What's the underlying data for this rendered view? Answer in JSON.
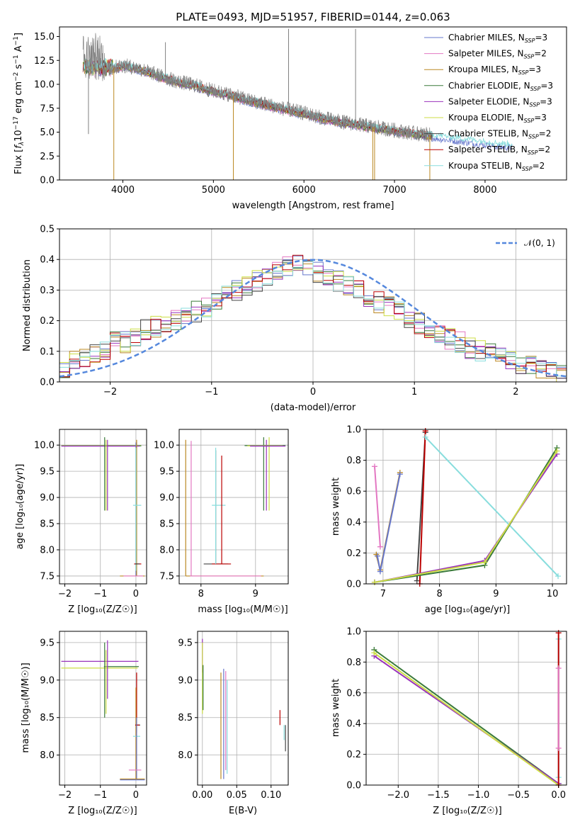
{
  "figure": {
    "colors": {
      "Chabrier MILES": "#6677cc",
      "Salpeter MILES": "#e377c2",
      "Kroupa MILES": "#bb8822",
      "Chabrier ELODIE": "#3a7a3a",
      "Salpeter ELODIE": "#9933bb",
      "Kroupa ELODIE": "#ccdd44",
      "Chabrier STELIB": "#444444",
      "Salpeter STELIB": "#bb0000",
      "Kroupa STELIB": "#88dddd",
      "data": "#808080",
      "normal": "#5588dd",
      "grid": "#b0b0b0"
    }
  },
  "chart_data": [
    {
      "id": "spectrum",
      "type": "line",
      "title": "PLATE=0493, MJD=51957, FIBERID=0144, z=0.063",
      "xlabel": "wavelength [Angstrom, rest frame]",
      "ylabel": "Flux [$f_\\lambda 10^{-17}$ erg cm$^{-2}$ s$^{-1}$ A$^{-1}$]",
      "ylabel_parts": {
        "a": "Flux [",
        "b": "f",
        "c": "λ",
        "d": "10",
        "e": "−17",
        "f": " erg cm",
        "g": "−2",
        "h": " s",
        "i": "−1",
        "j": " A",
        "k": "−1",
        "l": "]"
      },
      "xlim": [
        3300,
        8900
      ],
      "ylim": [
        0,
        16
      ],
      "xticks": [
        "4000",
        "5000",
        "6000",
        "7000",
        "8000"
      ],
      "xtick_values": [
        4000,
        5000,
        6000,
        7000,
        8000
      ],
      "yticks": [
        "0.0",
        "2.5",
        "5.0",
        "7.5",
        "10.0",
        "12.5",
        "15.0"
      ],
      "ytick_values": [
        0,
        2.5,
        5,
        7.5,
        10,
        12.5,
        15
      ],
      "grid": false,
      "legend_position": "upper-right",
      "legend": [
        {
          "name": "Chabrier MILES",
          "nssp": "3"
        },
        {
          "name": "Salpeter MILES",
          "nssp": "2"
        },
        {
          "name": "Kroupa MILES",
          "nssp": "3"
        },
        {
          "name": "Chabrier ELODIE",
          "nssp": "3"
        },
        {
          "name": "Salpeter ELODIE",
          "nssp": "3"
        },
        {
          "name": "Kroupa ELODIE",
          "nssp": "3"
        },
        {
          "name": "Chabrier STELIB",
          "nssp": "2"
        },
        {
          "name": "Salpeter STELIB",
          "nssp": "2"
        },
        {
          "name": "Kroupa STELIB",
          "nssp": "2"
        }
      ],
      "legend_label_parts": {
        "n": "N",
        "sub": "SSP"
      },
      "data_trend": {
        "x": [
          3600,
          3800,
          4000,
          4200,
          4400,
          4600,
          4800,
          5000,
          5200,
          5400,
          5600,
          5800,
          6000,
          6200,
          6400,
          6600,
          6800,
          7000,
          7200,
          7400
        ],
        "y": [
          11.8,
          11.5,
          12.0,
          11.6,
          10.9,
          10.3,
          9.9,
          9.3,
          8.9,
          8.3,
          7.9,
          7.4,
          7.0,
          6.5,
          6.1,
          5.8,
          5.5,
          5.2,
          4.9,
          4.7
        ]
      },
      "model_trend": {
        "x": [
          3600,
          3800,
          4000,
          4200,
          4400,
          4600,
          4800,
          5000,
          5200,
          5400,
          5600,
          5800,
          6000,
          6200,
          6400,
          6600,
          6800,
          7000,
          7200,
          7400,
          7800,
          8200
        ],
        "y": [
          11.6,
          11.4,
          11.9,
          11.5,
          10.8,
          10.2,
          9.8,
          9.2,
          8.8,
          8.2,
          7.8,
          7.3,
          6.9,
          6.4,
          6.0,
          5.7,
          5.4,
          5.1,
          4.8,
          4.6,
          4.1,
          3.6
        ]
      },
      "spikes": [
        {
          "x": 3620,
          "y": 4.8
        },
        {
          "x": 3900,
          "y": 0
        },
        {
          "x": 4470,
          "y": 14.4
        },
        {
          "x": 5220,
          "y": 0
        },
        {
          "x": 5830,
          "y": 15.8
        },
        {
          "x": 6570,
          "y": 15.8
        },
        {
          "x": 6760,
          "y": 0
        },
        {
          "x": 6780,
          "y": 0
        },
        {
          "x": 7390,
          "y": 0
        }
      ]
    },
    {
      "id": "residuals",
      "type": "histogram",
      "xlabel": "(data-model)/error",
      "ylabel": "Normed distribution",
      "xlim": [
        -2.5,
        2.5
      ],
      "ylim": [
        0,
        0.5
      ],
      "xticks": [
        "−2",
        "−1",
        "0",
        "1",
        "2"
      ],
      "xtick_values": [
        -2,
        -1,
        0,
        1,
        2
      ],
      "yticks": [
        "0.0",
        "0.1",
        "0.2",
        "0.3",
        "0.4",
        "0.5"
      ],
      "ytick_values": [
        0,
        0.1,
        0.2,
        0.3,
        0.4,
        0.5
      ],
      "grid": true,
      "legend_position": "upper-right",
      "legend_label": "𝒩(0, 1)",
      "bin_width": 0.1,
      "bins_start": -2.5,
      "base_histogram": [
        0.04,
        0.07,
        0.08,
        0.09,
        0.1,
        0.13,
        0.13,
        0.15,
        0.17,
        0.18,
        0.19,
        0.2,
        0.22,
        0.23,
        0.24,
        0.26,
        0.28,
        0.3,
        0.31,
        0.33,
        0.35,
        0.36,
        0.38,
        0.39,
        0.37,
        0.36,
        0.35,
        0.33,
        0.31,
        0.3,
        0.28,
        0.26,
        0.25,
        0.23,
        0.21,
        0.19,
        0.17,
        0.15,
        0.14,
        0.13,
        0.11,
        0.1,
        0.09,
        0.08,
        0.07,
        0.06,
        0.05,
        0.04,
        0.03,
        0.02
      ],
      "normal_curve": {
        "mu": 0,
        "sigma": 1
      }
    },
    {
      "id": "age-vs-Z",
      "type": "errorbar",
      "xlabel": "Z [log₁₀(Z/Z☉)]",
      "ylabel": "age  [log₁₀(age/yr)]",
      "xlim": [
        -2.15,
        0.3
      ],
      "ylim": [
        7.35,
        10.3
      ],
      "xticks": [
        "−2",
        "−1",
        "0"
      ],
      "xtick_values": [
        -2,
        -1,
        0
      ],
      "yticks": [
        "7.5",
        "8.0",
        "8.5",
        "9.0",
        "9.5",
        "10.0"
      ],
      "ytick_values": [
        7.5,
        8.0,
        8.5,
        9.0,
        9.5,
        10.0
      ],
      "grid": true
    },
    {
      "id": "age-vs-mass",
      "type": "errorbar",
      "xlabel": "mass [log₁₀(M/M☉)]",
      "ylabel": "",
      "xlim": [
        7.6,
        9.6
      ],
      "ylim": [
        7.35,
        10.3
      ],
      "xticks": [
        "8",
        "9"
      ],
      "xtick_values": [
        8,
        9
      ],
      "yticks": [
        "7.5",
        "8.0",
        "8.5",
        "9.0",
        "9.5",
        "10.0"
      ],
      "ytick_values": [
        7.5,
        8.0,
        8.5,
        9.0,
        9.5,
        10.0
      ],
      "grid": true
    },
    {
      "id": "massweight-vs-age",
      "type": "line",
      "xlabel": "age  [log₁₀(age/yr)]",
      "ylabel": "mass weight",
      "xlim": [
        6.7,
        10.25
      ],
      "ylim": [
        0,
        1
      ],
      "xticks": [
        "7",
        "8",
        "9",
        "10"
      ],
      "xtick_values": [
        7,
        8,
        9,
        10
      ],
      "yticks": [
        "0.0",
        "0.2",
        "0.4",
        "0.6",
        "0.8",
        "1.0"
      ],
      "ytick_values": [
        0,
        0.2,
        0.4,
        0.6,
        0.8,
        1.0
      ],
      "grid": true,
      "series": [
        {
          "name": "Salpeter MILES",
          "x": [
            6.85,
            6.95
          ],
          "y": [
            0.76,
            0.24
          ]
        },
        {
          "name": "Kroupa MILES",
          "x": [
            6.88,
            6.95,
            7.3
          ],
          "y": [
            0.19,
            0.09,
            0.72
          ]
        },
        {
          "name": "Chabrier MILES",
          "x": [
            6.9,
            6.95,
            7.3
          ],
          "y": [
            0.18,
            0.08,
            0.71
          ]
        },
        {
          "name": "Chabrier STELIB",
          "x": [
            7.6,
            7.75
          ],
          "y": [
            0.02,
            0.98
          ]
        },
        {
          "name": "Salpeter STELIB",
          "x": [
            7.65,
            7.75
          ],
          "y": [
            0.0,
            0.99
          ]
        },
        {
          "name": "Kroupa STELIB",
          "x": [
            7.75,
            10.1
          ],
          "y": [
            0.95,
            0.05
          ]
        },
        {
          "name": "Chabrier ELODIE",
          "x": [
            6.85,
            8.8,
            10.08
          ],
          "y": [
            0.01,
            0.12,
            0.88
          ]
        },
        {
          "name": "Salpeter ELODIE",
          "x": [
            6.85,
            8.8,
            10.08
          ],
          "y": [
            0.01,
            0.15,
            0.84
          ]
        },
        {
          "name": "Kroupa ELODIE",
          "x": [
            6.85,
            8.8,
            10.08
          ],
          "y": [
            0.01,
            0.14,
            0.86
          ]
        }
      ]
    },
    {
      "id": "mass-vs-Z",
      "type": "errorbar",
      "xlabel": "Z [log₁₀(Z/Z☉)]",
      "ylabel": "mass [log₁₀(M/M☉)]",
      "xlim": [
        -2.15,
        0.3
      ],
      "ylim": [
        7.6,
        9.65
      ],
      "xticks": [
        "−2",
        "−1",
        "0"
      ],
      "xtick_values": [
        -2,
        -1,
        0
      ],
      "yticks": [
        "8.0",
        "8.5",
        "9.0",
        "9.5"
      ],
      "ytick_values": [
        8.0,
        8.5,
        9.0,
        9.5
      ],
      "grid": true
    },
    {
      "id": "mass-vs-ebv",
      "type": "errorbar",
      "xlabel": "E(B-V)",
      "ylabel": "",
      "xlim": [
        -0.007,
        0.125
      ],
      "ylim": [
        7.6,
        9.65
      ],
      "xticks": [
        "0.00",
        "0.05",
        "0.10"
      ],
      "xtick_values": [
        0,
        0.05,
        0.1
      ],
      "yticks": [
        "8.0",
        "8.5",
        "9.0",
        "9.5"
      ],
      "ytick_values": [
        8.0,
        8.5,
        9.0,
        9.5
      ],
      "grid": true
    },
    {
      "id": "massweight-vs-Z",
      "type": "line",
      "xlabel": "Z [log₁₀(Z/Z☉)]",
      "ylabel": "mass weight",
      "xlim": [
        -2.4,
        0.1
      ],
      "ylim": [
        0,
        1
      ],
      "xticks": [
        "−2.0",
        "−1.5",
        "−1.0",
        "−0.5",
        "0.0"
      ],
      "xtick_values": [
        -2,
        -1.5,
        -1,
        -0.5,
        0
      ],
      "yticks": [
        "0.0",
        "0.2",
        "0.4",
        "0.6",
        "0.8",
        "1.0"
      ],
      "ytick_values": [
        0,
        0.2,
        0.4,
        0.6,
        0.8,
        1.0
      ],
      "grid": true,
      "series": [
        {
          "name": "Chabrier ELODIE",
          "x": [
            -2.3,
            0.0
          ],
          "y": [
            0.88,
            0.01
          ]
        },
        {
          "name": "Salpeter ELODIE",
          "x": [
            -2.3,
            0.0
          ],
          "y": [
            0.84,
            0.01
          ]
        },
        {
          "name": "Kroupa ELODIE",
          "x": [
            -2.3,
            0.0
          ],
          "y": [
            0.86,
            0.0
          ]
        },
        {
          "name": "Kroupa STELIB",
          "x": [
            0.0,
            0.0
          ],
          "y": [
            0.05,
            0.95
          ]
        },
        {
          "name": "Salpeter STELIB",
          "x": [
            0.0,
            0.0
          ],
          "y": [
            0.0,
            0.99
          ]
        },
        {
          "name": "Salpeter MILES",
          "x": [
            0.0,
            0.0
          ],
          "y": [
            0.24,
            0.76
          ]
        }
      ]
    }
  ]
}
